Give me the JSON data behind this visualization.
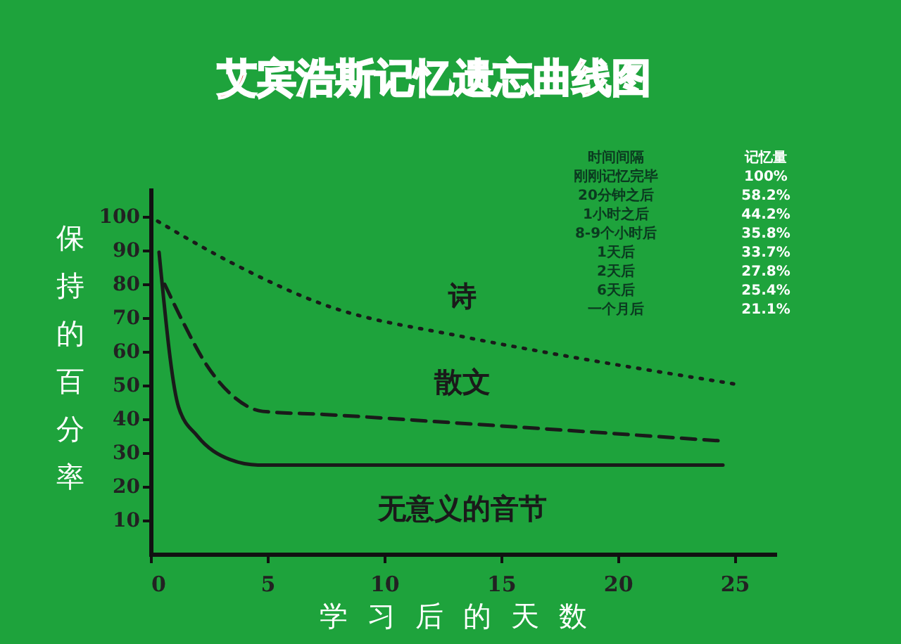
{
  "chart_data": {
    "type": "line",
    "title": "艾宾浩斯记忆遗忘曲线图",
    "xlabel": "学习后的天数",
    "ylabel": "保持的百分率",
    "xlim": [
      0,
      26.7
    ],
    "xticks": [
      0,
      5,
      10,
      15,
      20,
      25
    ],
    "ylim": [
      0,
      108
    ],
    "yticks": [
      10,
      20,
      30,
      40,
      50,
      60,
      70,
      80,
      90,
      100
    ],
    "grid": false,
    "legend": false,
    "marker": "none",
    "series": [
      {
        "name": "诗",
        "color": "#1a1a1a",
        "line_style": "dotted",
        "x": [
          0.3,
          3.4,
          7.4,
          13.4,
          16.6,
          25.2
        ],
        "values": [
          98.7,
          86.6,
          74,
          64.4,
          60.2,
          50.2
        ]
      },
      {
        "name": "散文",
        "color": "#1a1a1a",
        "line_style": "dashed",
        "x": [
          0.6,
          1.4,
          2.4,
          3.6,
          4.8,
          7.4,
          13,
          24.5
        ],
        "values": [
          80,
          68.6,
          56,
          46.4,
          42.3,
          41.4,
          38.9,
          33.5
        ]
      },
      {
        "name": "无意义的音节",
        "color": "#1a1a1a",
        "line_style": "solid",
        "x": [
          0.36,
          1.2,
          2.0,
          3.4,
          4.6,
          24.5
        ],
        "values": [
          89.5,
          43.5,
          35,
          28,
          26.4,
          26.4
        ]
      }
    ],
    "annotations": [
      "时间间隔",
      "记忆量",
      "刚刚记忆完毕",
      "100%",
      "20分钟之后",
      "58.2%",
      "1小时之后",
      "44.2%",
      "8-9个小时后",
      "35.8%",
      "1天后",
      "33.7%",
      "2天后",
      "27.8%",
      "6天后",
      "25.4%",
      "一个月后",
      "21.1%"
    ]
  }
}
